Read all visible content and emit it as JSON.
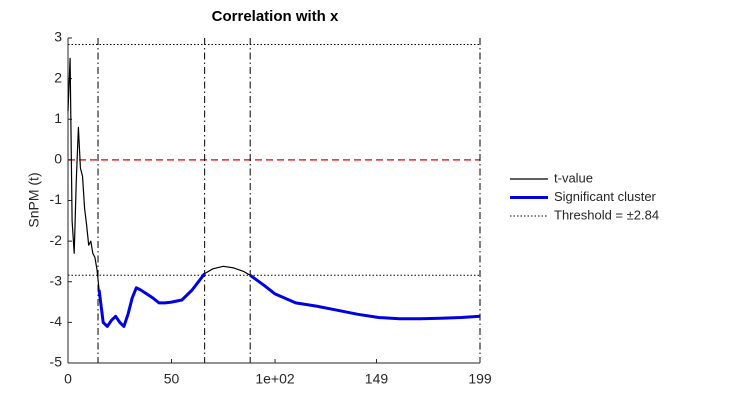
{
  "chart_data": {
    "type": "line",
    "title": "Correlation with x",
    "y_label": "SnPM (t)",
    "x": [
      0,
      1,
      2,
      3,
      4,
      5,
      6,
      7,
      8,
      9,
      10,
      11,
      12,
      13,
      14,
      15,
      17,
      19,
      21,
      23,
      25,
      27,
      29,
      31,
      33,
      35,
      38,
      41,
      44,
      47,
      50,
      55,
      60,
      63,
      66,
      70,
      75,
      80,
      85,
      88,
      95,
      100,
      110,
      120,
      130,
      140,
      150,
      160,
      170,
      180,
      190,
      199
    ],
    "series": [
      {
        "name": "t-value",
        "color": "#000000",
        "width": 1.2,
        "values": [
          1.2,
          2.5,
          -1.5,
          -2.3,
          -0.5,
          0.8,
          -0.2,
          -0.4,
          -1.2,
          -1.6,
          -2.1,
          -2.0,
          -2.3,
          -2.4,
          -2.7,
          -3.2,
          -4.0,
          -4.1,
          -3.95,
          -3.85,
          -4.0,
          -4.1,
          -3.8,
          -3.4,
          -3.15,
          -3.2,
          -3.3,
          -3.4,
          -3.52,
          -3.52,
          -3.5,
          -3.45,
          -3.2,
          -3.0,
          -2.8,
          -2.68,
          -2.62,
          -2.66,
          -2.75,
          -2.84,
          -3.1,
          -3.3,
          -3.52,
          -3.6,
          -3.7,
          -3.8,
          -3.88,
          -3.91,
          -3.91,
          -3.9,
          -3.88,
          -3.85
        ]
      },
      {
        "name": "Significant cluster",
        "color": "#0000e0",
        "width": 3,
        "values": [
          null,
          null,
          null,
          null,
          null,
          null,
          null,
          null,
          null,
          null,
          null,
          null,
          null,
          null,
          null,
          -3.2,
          -4.0,
          -4.1,
          -3.95,
          -3.85,
          -4.0,
          -4.1,
          -3.8,
          -3.4,
          -3.15,
          -3.2,
          -3.3,
          -3.4,
          -3.52,
          -3.52,
          -3.5,
          -3.45,
          -3.2,
          -3.0,
          -2.8,
          null,
          null,
          null,
          null,
          -2.84,
          -3.1,
          -3.3,
          -3.52,
          -3.6,
          -3.7,
          -3.8,
          -3.88,
          -3.91,
          -3.91,
          -3.9,
          -3.88,
          -3.85
        ]
      }
    ],
    "threshold": 2.84,
    "threshold_label": "Threshold = ±2.84",
    "reference_line": 0,
    "reference_color": "#e8282e",
    "cluster_edges": [
      14.5,
      66,
      88,
      199
    ],
    "xlim": [
      0,
      199
    ],
    "ylim": [
      -5,
      3
    ],
    "xticks": [
      0,
      50,
      {
        "value": 100,
        "label": "1e+02"
      },
      149,
      199
    ],
    "yticks": [
      -5,
      -4,
      -3,
      -2,
      -1,
      0,
      1,
      2,
      3
    ]
  }
}
